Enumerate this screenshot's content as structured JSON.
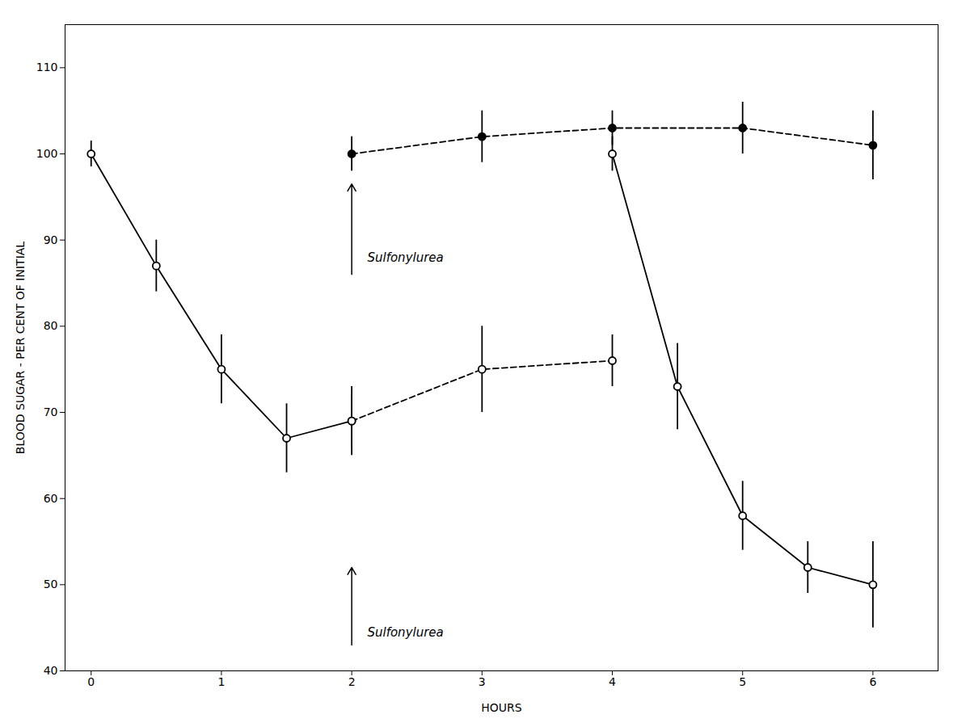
{
  "chart_data": {
    "type": "line",
    "title": "",
    "xlabel": "HOURS",
    "ylabel": "BLOOD SUGAR - PER CENT OF INITIAL",
    "xlim": [
      -0.2,
      6.5
    ],
    "ylim": [
      40,
      115
    ],
    "xticks": [
      0,
      1,
      2,
      3,
      4,
      5,
      6
    ],
    "yticks": [
      40,
      50,
      60,
      70,
      80,
      90,
      100,
      110
    ],
    "grid": false,
    "series": [
      {
        "x": [
          0,
          0.5,
          1,
          1.5,
          2
        ],
        "values": [
          100,
          87,
          75,
          67,
          69
        ],
        "yerr": [
          1.5,
          3,
          4,
          4,
          3
        ],
        "color": "black",
        "line_style": "solid",
        "marker": "open_circle"
      },
      {
        "x": [
          4,
          4.5,
          5,
          5.5,
          6
        ],
        "values": [
          100,
          73,
          58,
          52,
          50
        ],
        "yerr": [
          2,
          5,
          4,
          3,
          5
        ],
        "color": "black",
        "line_style": "solid",
        "marker": "open_circle"
      },
      {
        "x": [
          2,
          3,
          4,
          5,
          6
        ],
        "values": [
          100,
          102,
          103,
          103,
          101
        ],
        "yerr": [
          2,
          3,
          2,
          3,
          4
        ],
        "color": "black",
        "line_style": "dashed",
        "marker": "filled_circle"
      },
      {
        "x": [
          2,
          3,
          4
        ],
        "values": [
          69,
          75,
          76
        ],
        "yerr": [
          4,
          5,
          3
        ],
        "color": "black",
        "line_style": "dashed",
        "marker": "open_circle"
      }
    ],
    "annotations": [
      {
        "text": "Sulfonylurea",
        "x": 2.12,
        "y": 87.5,
        "arrow_x": 2.0,
        "arrow_y_start": 86,
        "arrow_y_end": 96.5
      },
      {
        "text": "Sulfonylurea",
        "x": 2.12,
        "y": 44,
        "arrow_x": 2.0,
        "arrow_y_start": 43,
        "arrow_y_end": 52
      }
    ]
  }
}
